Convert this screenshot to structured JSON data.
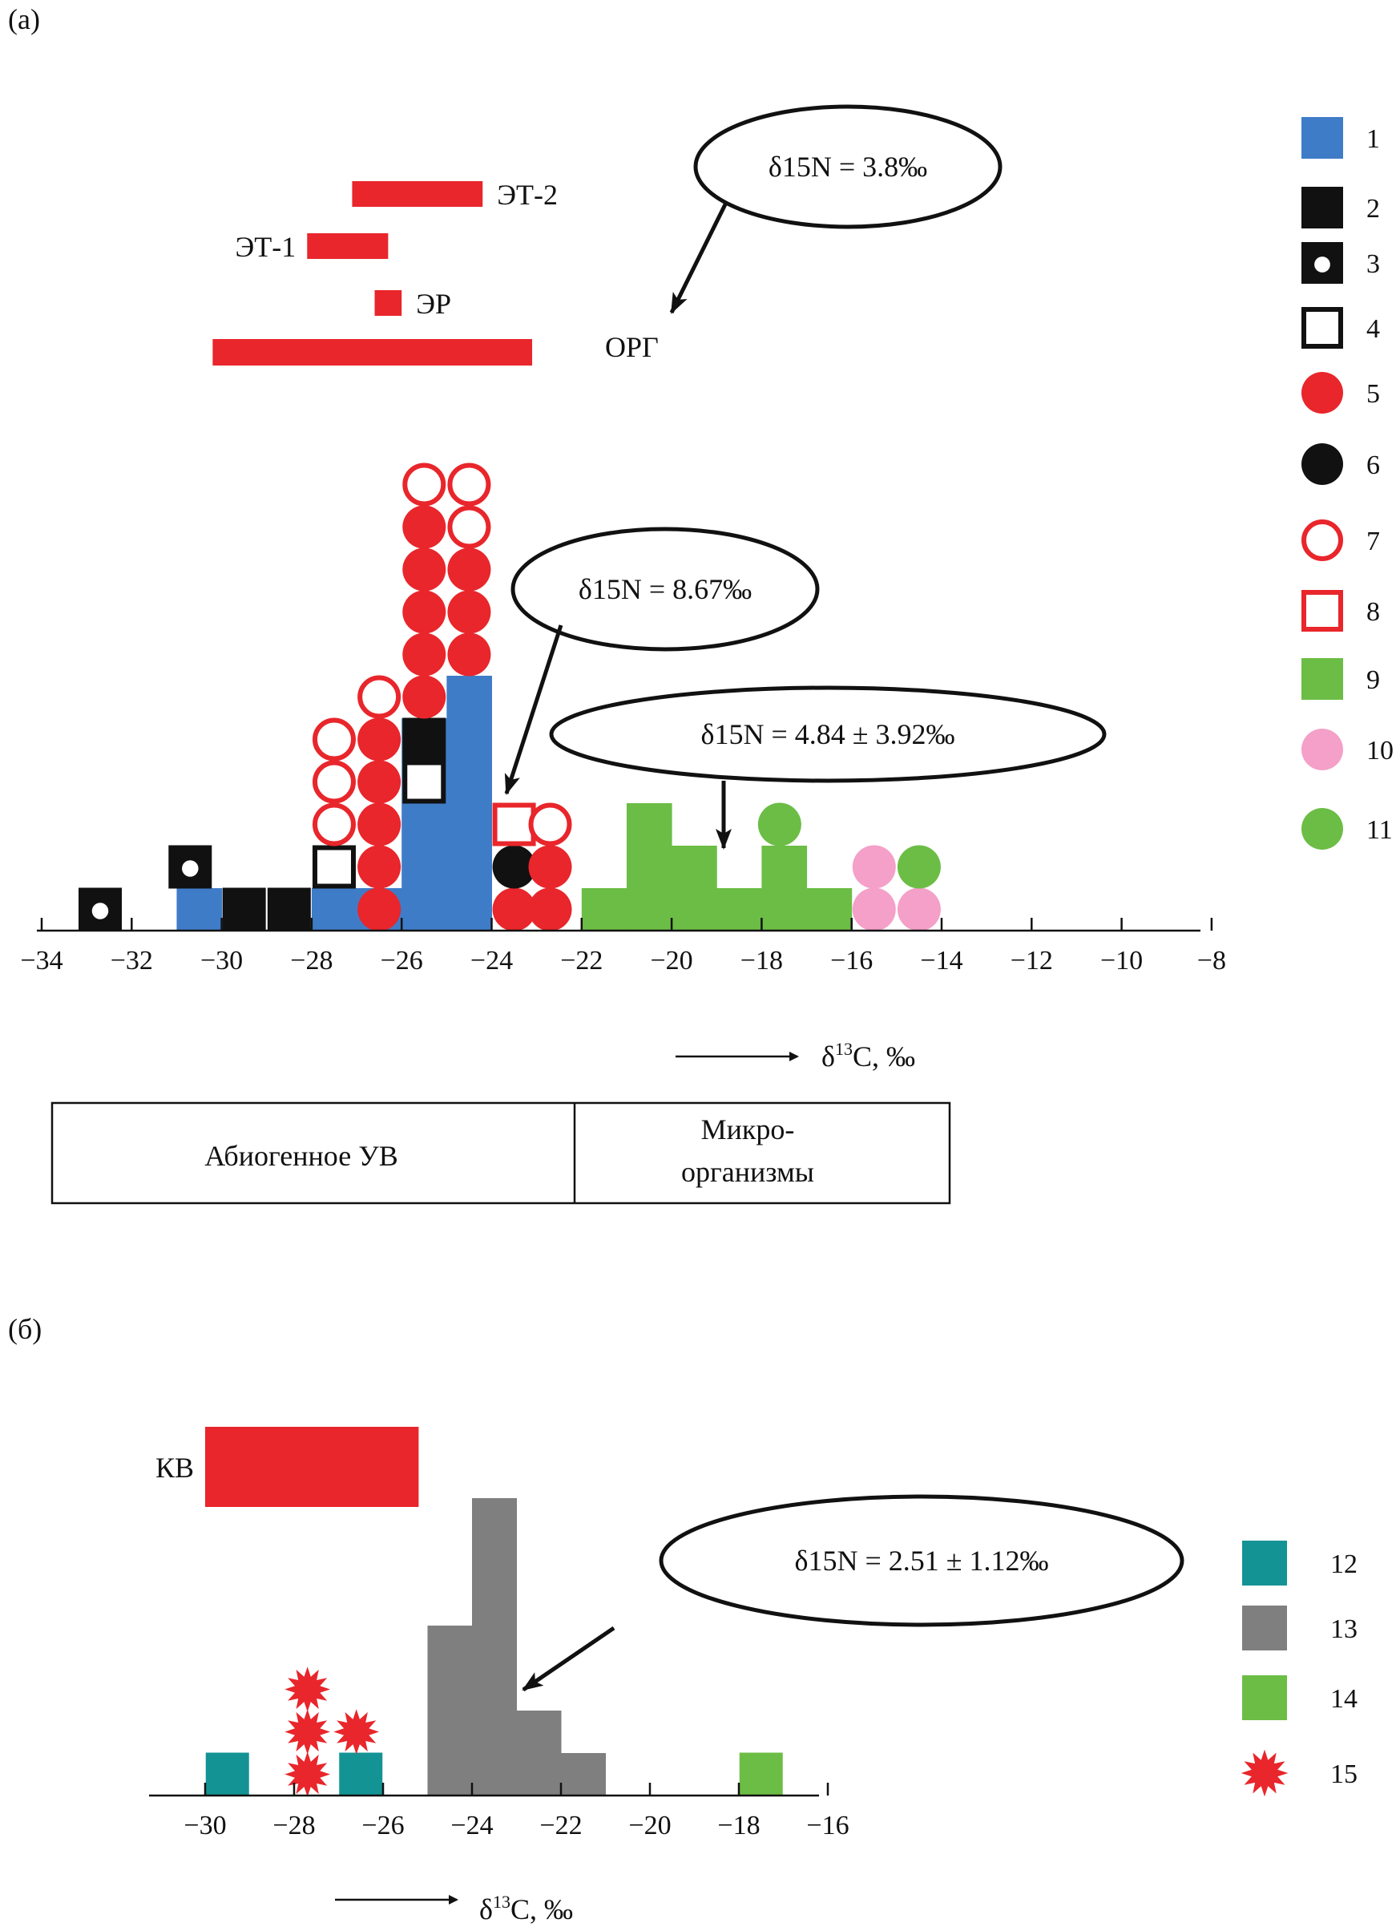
{
  "chart_data": [
    {
      "type": "scatter",
      "panel_label": "(а)",
      "xlabel": "δ13C, ‰",
      "xlim": [
        -34,
        -8
      ],
      "xticks": [
        "−34",
        "−32",
        "−30",
        "−28",
        "−26",
        "−24",
        "−22",
        "−20",
        "−18",
        "−16",
        "−14",
        "−12",
        "−10",
        "−8"
      ],
      "range_bars": [
        {
          "label": "ЭТ-2",
          "x0": -27.1,
          "x1": -24.2,
          "color": "#e8262b"
        },
        {
          "label": "ЭТ-1",
          "x0": -28.1,
          "x1": -26.3,
          "color": "#e8262b"
        },
        {
          "label": "ЭР",
          "x0": -26.6,
          "x1": -26.0,
          "color": "#e8262b"
        },
        {
          "label": "",
          "x0": -30.2,
          "x1": -23.1,
          "color": "#e8262b"
        }
      ],
      "histograms": [
        {
          "legend": "1",
          "color": "#3f7cc8",
          "bins": [
            [
              -31,
              -30,
              1
            ],
            [
              -28,
              -27,
              1
            ],
            [
              -27,
              -26,
              1
            ],
            [
              -26,
              -25,
              5
            ],
            [
              -25,
              -24,
              6
            ]
          ]
        },
        {
          "legend": "9",
          "color": "#6cbd45",
          "bins": [
            [
              -22,
              -21,
              1
            ],
            [
              -21,
              -20,
              3
            ],
            [
              -20,
              -19,
              2
            ],
            [
              -19,
              -18,
              1
            ],
            [
              -18,
              -17,
              2
            ],
            [
              -17,
              -16,
              1
            ]
          ]
        }
      ],
      "markers": [
        {
          "legend": "3",
          "x": -32.7,
          "y": 1
        },
        {
          "legend": "3",
          "x": -30.7,
          "y": 2
        },
        {
          "legend": "2",
          "x": -29.5,
          "y": 1
        },
        {
          "legend": "2",
          "x": -28.5,
          "y": 1
        },
        {
          "legend": "4",
          "x": -27.5,
          "y": 2
        },
        {
          "legend": "7",
          "x": -27.5,
          "y": 3
        },
        {
          "legend": "7",
          "x": -27.5,
          "y": 4
        },
        {
          "legend": "7",
          "x": -27.5,
          "y": 5
        },
        {
          "legend": "5",
          "x": -26.5,
          "y": 1
        },
        {
          "legend": "5",
          "x": -26.5,
          "y": 2
        },
        {
          "legend": "5",
          "x": -26.5,
          "y": 3
        },
        {
          "legend": "5",
          "x": -26.5,
          "y": 4
        },
        {
          "legend": "5",
          "x": -26.5,
          "y": 5
        },
        {
          "legend": "7",
          "x": -26.5,
          "y": 6
        },
        {
          "legend": "4",
          "x": -25.5,
          "y": 4
        },
        {
          "legend": "2",
          "x": -25.5,
          "y": 5
        },
        {
          "legend": "5",
          "x": -25.5,
          "y": 6
        },
        {
          "legend": "5",
          "x": -25.5,
          "y": 7
        },
        {
          "legend": "5",
          "x": -25.5,
          "y": 8
        },
        {
          "legend": "5",
          "x": -25.5,
          "y": 9
        },
        {
          "legend": "5",
          "x": -25.5,
          "y": 10
        },
        {
          "legend": "7",
          "x": -25.5,
          "y": 11
        },
        {
          "legend": "5",
          "x": -24.5,
          "y": 7
        },
        {
          "legend": "5",
          "x": -24.5,
          "y": 8
        },
        {
          "legend": "5",
          "x": -24.5,
          "y": 9
        },
        {
          "legend": "7",
          "x": -24.5,
          "y": 10
        },
        {
          "legend": "7",
          "x": -24.5,
          "y": 11
        },
        {
          "legend": "5",
          "x": -23.5,
          "y": 1
        },
        {
          "legend": "6",
          "x": -23.5,
          "y": 2
        },
        {
          "legend": "8",
          "x": -23.5,
          "y": 3
        },
        {
          "legend": "5",
          "x": -22.7,
          "y": 1
        },
        {
          "legend": "5",
          "x": -22.7,
          "y": 2
        },
        {
          "legend": "7",
          "x": -22.7,
          "y": 3
        },
        {
          "legend": "11",
          "x": -17.6,
          "y": 3
        },
        {
          "legend": "10",
          "x": -15.5,
          "y": 1
        },
        {
          "legend": "10",
          "x": -15.5,
          "y": 2
        },
        {
          "legend": "10",
          "x": -14.5,
          "y": 1
        },
        {
          "legend": "11",
          "x": -14.5,
          "y": 2
        }
      ],
      "annotations": [
        {
          "text": "δ15N = 3.8‰",
          "target": "ОРГ"
        },
        {
          "text": "δ15N = 8.67‰"
        },
        {
          "text": "δ15N = 4.84 ± 3.92‰"
        }
      ],
      "point_label": "ОРГ",
      "legend": [
        "1",
        "2",
        "3",
        "4",
        "5",
        "6",
        "7",
        "8",
        "9",
        "10",
        "11"
      ],
      "legend_position": "right",
      "zones": [
        "Абиогенное УВ",
        "Микро-",
        "организмы"
      ],
      "grid": false
    },
    {
      "type": "bar",
      "panel_label": "(б)",
      "xlabel": "δ13C, ‰",
      "xlim": [
        -31,
        -16
      ],
      "xticks": [
        "−30",
        "−28",
        "−26",
        "−24",
        "−22",
        "−20",
        "−18",
        "−16"
      ],
      "range_bars": [
        {
          "label": "КВ",
          "x0": -30.0,
          "x1": -25.2,
          "color": "#e8262b"
        }
      ],
      "histograms": [
        {
          "legend": "13",
          "color": "#7f7f80",
          "bins": [
            [
              -25,
              -24,
              4
            ],
            [
              -24,
              -23,
              7
            ],
            [
              -23,
              -22,
              2
            ],
            [
              -22,
              -21,
              1
            ]
          ]
        }
      ],
      "markers": [
        {
          "legend": "12",
          "x": -29.5,
          "y": 1
        },
        {
          "legend": "12",
          "x": -26.5,
          "y": 1
        },
        {
          "legend": "14",
          "x": -17.5,
          "y": 1
        },
        {
          "legend": "15",
          "x": -27.7,
          "y": 1
        },
        {
          "legend": "15",
          "x": -27.7,
          "y": 2
        },
        {
          "legend": "15",
          "x": -27.7,
          "y": 3
        },
        {
          "legend": "15",
          "x": -26.6,
          "y": 2
        }
      ],
      "annotations": [
        {
          "text": "δ15N = 2.51 ± 1.12‰"
        }
      ],
      "legend": [
        "12",
        "13",
        "14",
        "15"
      ],
      "legend_position": "right",
      "grid": false
    }
  ],
  "colors": {
    "blue": "#3f7cc8",
    "red": "#e8262b",
    "black": "#111111",
    "green": "#6cbd45",
    "pink": "#f4a0c8",
    "teal": "#149394",
    "gray": "#7f7f80"
  }
}
